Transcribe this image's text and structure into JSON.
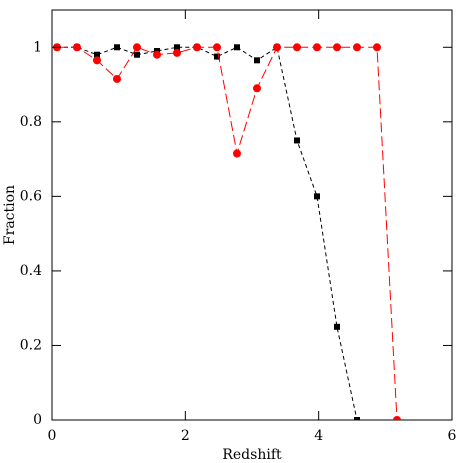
{
  "chart_data": {
    "type": "line",
    "xlabel": "Redshift",
    "ylabel": "Fraction",
    "xlim": [
      0,
      6
    ],
    "ylim": [
      0,
      1.1
    ],
    "xticks": [
      0,
      2,
      4,
      6
    ],
    "yticks": [
      0,
      0.2,
      0.4,
      0.6,
      0.8,
      1
    ],
    "series": [
      {
        "color": "#000000",
        "marker": "square",
        "x": [
          0.075,
          0.375,
          0.675,
          0.975,
          1.275,
          1.575,
          1.875,
          2.175,
          2.475,
          2.775,
          3.075,
          3.375,
          3.675,
          3.975,
          4.275,
          4.575
        ],
        "values": [
          1,
          1,
          0.98,
          1,
          0.98,
          0.99,
          1,
          1,
          0.975,
          1,
          0.965,
          1,
          0.75,
          0.6,
          0.25,
          0
        ]
      },
      {
        "color": "#ff0000",
        "marker": "circle",
        "x": [
          0.075,
          0.375,
          0.675,
          0.975,
          1.275,
          1.575,
          1.875,
          2.175,
          2.475,
          2.775,
          3.075,
          3.375,
          3.675,
          3.975,
          4.275,
          4.575,
          4.875,
          5.175
        ],
        "values": [
          1,
          1,
          0.965,
          0.915,
          1,
          0.98,
          0.985,
          1,
          1,
          0.715,
          0.89,
          1,
          1,
          1,
          1,
          1,
          1,
          0
        ]
      }
    ]
  }
}
